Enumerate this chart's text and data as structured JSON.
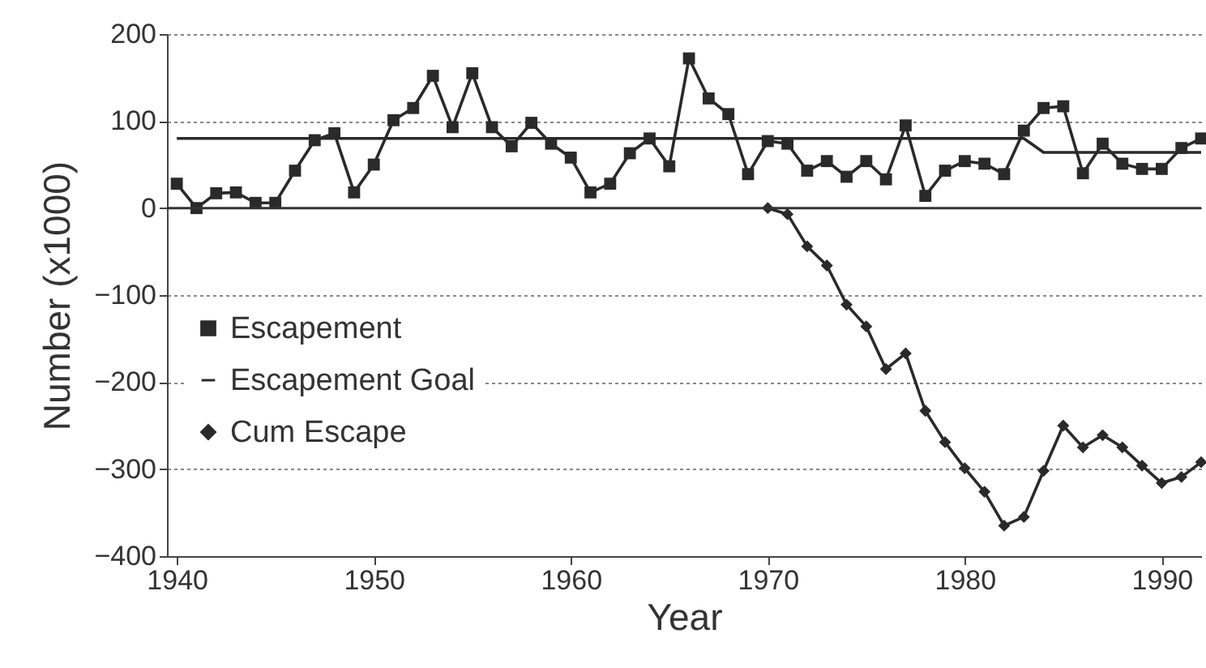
{
  "chart_data": {
    "type": "line",
    "xlabel": "Year",
    "ylabel": "Number (x1000)",
    "x": [
      1940,
      1941,
      1942,
      1943,
      1944,
      1945,
      1946,
      1947,
      1948,
      1949,
      1950,
      1951,
      1952,
      1953,
      1954,
      1955,
      1956,
      1957,
      1958,
      1959,
      1960,
      1961,
      1962,
      1963,
      1964,
      1965,
      1966,
      1967,
      1968,
      1969,
      1970,
      1971,
      1972,
      1973,
      1974,
      1975,
      1976,
      1977,
      1978,
      1979,
      1980,
      1981,
      1982,
      1983,
      1984,
      1985,
      1986,
      1987,
      1988,
      1989,
      1990,
      1991,
      1992
    ],
    "series": [
      {
        "name": "Escapement",
        "color": "#2a2a2a",
        "marker": "square",
        "values": [
          28,
          0,
          17,
          18,
          6,
          6,
          43,
          78,
          86,
          18,
          50,
          101,
          115,
          152,
          93,
          155,
          93,
          71,
          98,
          74,
          58,
          18,
          28,
          63,
          80,
          48,
          172,
          126,
          108,
          39,
          77,
          74,
          43,
          54,
          36,
          54,
          33,
          95,
          14,
          43,
          54,
          51,
          39,
          89,
          115,
          117,
          40,
          74,
          51,
          45,
          45,
          69,
          80
        ]
      },
      {
        "name": "Escapement Goal",
        "color": "#2a2a2a",
        "marker": "none",
        "x": [
          1940,
          1983,
          1984,
          1992
        ],
        "values": [
          80,
          80,
          64,
          64
        ]
      },
      {
        "name": "Cum Escape",
        "color": "#2a2a2a",
        "marker": "diamond",
        "x": [
          1970,
          1971,
          1972,
          1973,
          1974,
          1975,
          1976,
          1977,
          1978,
          1979,
          1980,
          1981,
          1982,
          1983,
          1984,
          1985,
          1986,
          1987,
          1988,
          1989,
          1990,
          1991,
          1992
        ],
        "values": [
          0,
          -7,
          -44,
          -66,
          -111,
          -136,
          -185,
          -167,
          -233,
          -269,
          -299,
          -326,
          -365,
          -355,
          -302,
          -250,
          -275,
          -261,
          -275,
          -296,
          -316,
          -309,
          -292
        ]
      }
    ],
    "xlim": [
      1939.5,
      1992
    ],
    "xticks": [
      1940,
      1950,
      1960,
      1970,
      1980,
      1990
    ],
    "ylim": [
      -400,
      200
    ],
    "yticks": [
      -400,
      -300,
      -200,
      -100,
      0,
      100,
      200
    ],
    "grid": "y",
    "legend": "left",
    "ref_lines": [
      {
        "axis": "y",
        "value": 0,
        "color": "#333333"
      }
    ]
  }
}
